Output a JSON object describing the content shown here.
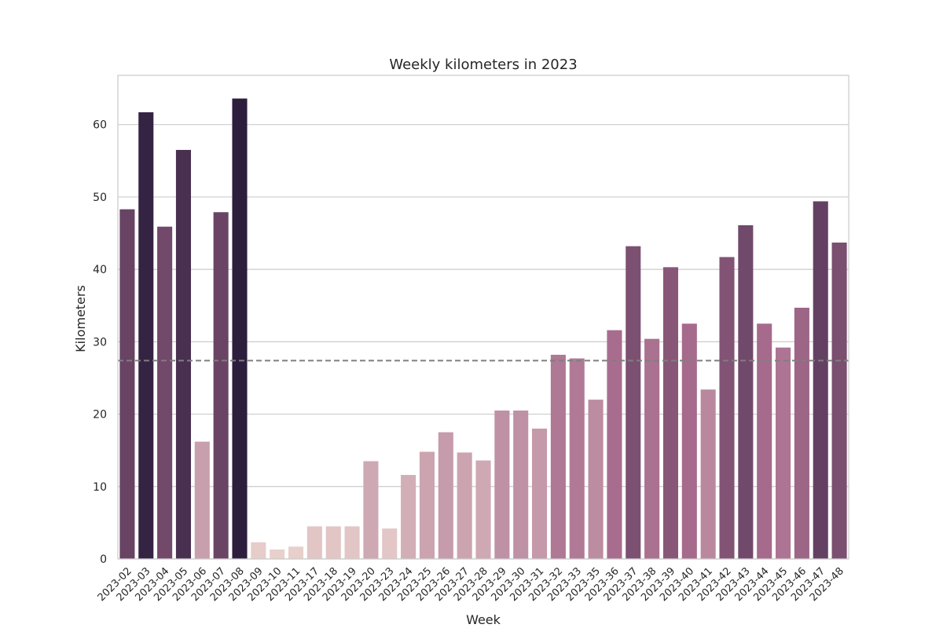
{
  "chart_data": {
    "type": "bar",
    "title": "Weekly kilometers in 2023",
    "xlabel": "Week",
    "ylabel": "Kilometers",
    "ylim": [
      0,
      66.8
    ],
    "yticks": [
      0,
      10,
      20,
      30,
      40,
      50,
      60
    ],
    "grid": "horizontal",
    "reference_line": {
      "value": 27.4,
      "style": "dashed",
      "color": "#7f7f7f"
    },
    "categories": [
      "2023-02",
      "2023-03",
      "2023-04",
      "2023-05",
      "2023-06",
      "2023-07",
      "2023-08",
      "2023-09",
      "2023-10",
      "2023-11",
      "2023-17",
      "2023-18",
      "2023-19",
      "2023-20",
      "2023-23",
      "2023-24",
      "2023-25",
      "2023-26",
      "2023-27",
      "2023-28",
      "2023-29",
      "2023-30",
      "2023-31",
      "2023-32",
      "2023-33",
      "2023-35",
      "2023-36",
      "2023-37",
      "2023-38",
      "2023-39",
      "2023-40",
      "2023-41",
      "2023-42",
      "2023-43",
      "2023-44",
      "2023-45",
      "2023-46",
      "2023-47",
      "2023-48"
    ],
    "values": [
      48.3,
      61.7,
      45.9,
      56.5,
      16.2,
      47.9,
      63.6,
      2.3,
      1.3,
      1.7,
      4.5,
      4.5,
      4.5,
      13.5,
      4.2,
      11.6,
      14.8,
      17.5,
      14.7,
      13.6,
      20.5,
      20.5,
      18.0,
      28.2,
      27.7,
      22.0,
      31.6,
      43.2,
      30.4,
      40.3,
      32.5,
      23.4,
      41.7,
      46.1,
      32.5,
      29.2,
      34.7,
      49.4,
      43.7
    ],
    "color_scale": {
      "low": "#e8d0cc",
      "high": "#2d1e3e"
    }
  }
}
